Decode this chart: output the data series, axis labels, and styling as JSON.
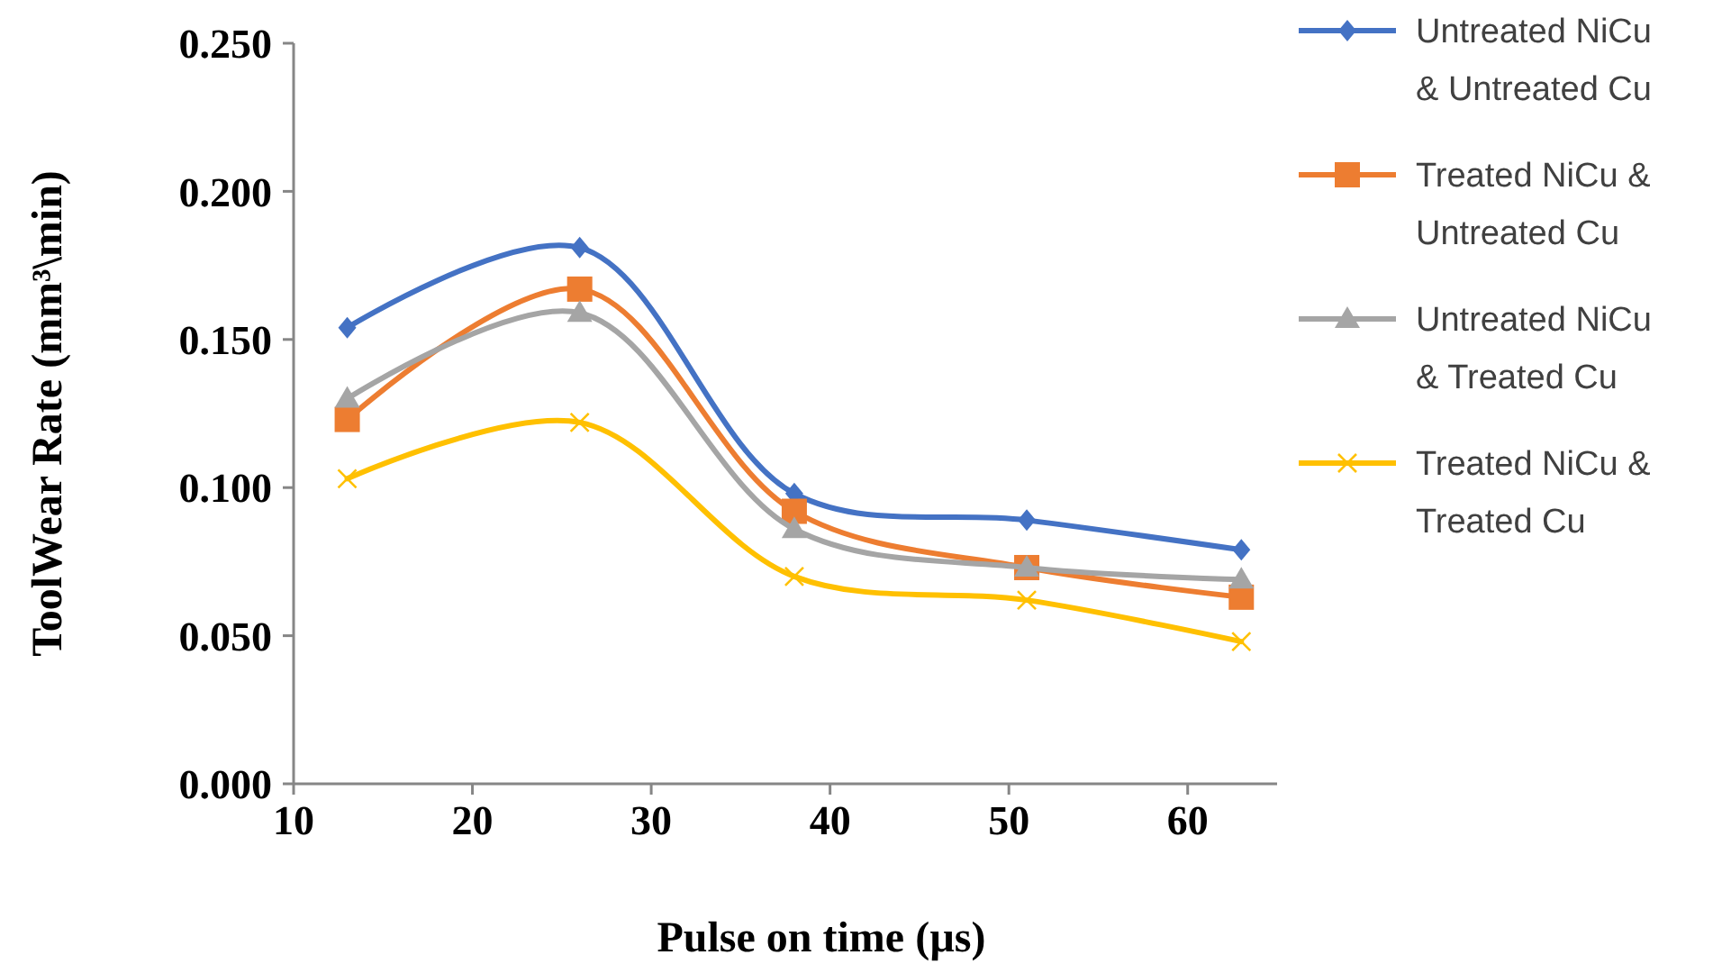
{
  "chart_data": {
    "type": "line",
    "xlabel": "Pulse on time (µs)",
    "ylabel": "ToolWear Rate (mm³\\min)",
    "x": [
      13,
      26,
      38,
      51,
      63
    ],
    "series": [
      {
        "name": "Untreated NiCu & Untreated Cu",
        "color": "#4472c4",
        "marker": "diamond",
        "values": [
          0.154,
          0.181,
          0.098,
          0.089,
          0.079
        ]
      },
      {
        "name": "Treated NiCu & Untreated Cu",
        "color": "#ed7d31",
        "marker": "square",
        "values": [
          0.123,
          0.167,
          0.092,
          0.073,
          0.063
        ]
      },
      {
        "name": "Untreated NiCu & Treated Cu",
        "color": "#a5a5a5",
        "marker": "triangle",
        "values": [
          0.13,
          0.159,
          0.086,
          0.073,
          0.069
        ]
      },
      {
        "name": "Treated NiCu & Treated Cu",
        "color": "#ffc000",
        "marker": "cross",
        "values": [
          0.103,
          0.122,
          0.07,
          0.062,
          0.048
        ]
      }
    ],
    "xlim": [
      10,
      65
    ],
    "xticks": [
      10,
      20,
      30,
      40,
      50,
      60
    ],
    "ylim": [
      0,
      0.25
    ],
    "yticks": [
      {
        "value": 0,
        "label": "0.000"
      },
      {
        "value": 0.05,
        "label": "0.050"
      },
      {
        "value": 0.1,
        "label": "0.100"
      },
      {
        "value": 0.15,
        "label": "0.150"
      },
      {
        "value": 0.2,
        "label": "0.200"
      },
      {
        "value": 0.25,
        "label": "0.250"
      }
    ],
    "grid": false,
    "legend": "right",
    "line_style": "solid"
  }
}
